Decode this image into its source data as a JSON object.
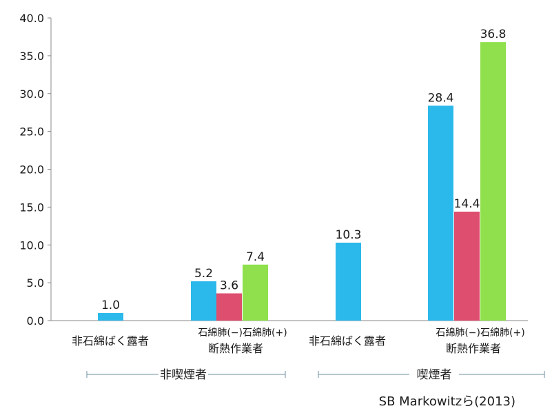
{
  "chart_data": {
    "type": "bar",
    "ylim": [
      0,
      40
    ],
    "y_ticks": [
      "0.0",
      "5.0",
      "10.0",
      "15.0",
      "20.0",
      "25.0",
      "30.0",
      "35.0",
      "40.0"
    ],
    "grid": false,
    "bars": [
      {
        "group": "非喫煙者",
        "category": "非石綿ばく露者",
        "value": 1.0,
        "label": "1.0",
        "color": "#2bb8ea"
      },
      {
        "group": "非喫煙者",
        "category": "断熱作業者",
        "sub": "石綿肺(−)",
        "value": 5.2,
        "label": "5.2",
        "color": "#2bb8ea"
      },
      {
        "group": "非喫煙者",
        "category": "断熱作業者",
        "sub": "石綿肺(−)",
        "value": 3.6,
        "label": "3.6",
        "color": "#de4e6e"
      },
      {
        "group": "非喫煙者",
        "category": "断熱作業者",
        "sub": "石綿肺(+)",
        "value": 7.4,
        "label": "7.4",
        "color": "#8fe04c"
      },
      {
        "group": "喫煙者",
        "category": "非石綿ばく露者",
        "value": 10.3,
        "label": "10.3",
        "color": "#2bb8ea"
      },
      {
        "group": "喫煙者",
        "category": "断熱作業者",
        "sub": "石綿肺(−)",
        "value": 28.4,
        "label": "28.4",
        "color": "#2bb8ea"
      },
      {
        "group": "喫煙者",
        "category": "断熱作業者",
        "sub": "石綿肺(−)",
        "value": 14.4,
        "label": "14.4",
        "color": "#de4e6e"
      },
      {
        "group": "喫煙者",
        "category": "断熱作業者",
        "sub": "石綿肺(+)",
        "value": 36.8,
        "label": "36.8",
        "color": "#8fe04c"
      }
    ],
    "categories": [
      {
        "label": "非石綿ばく露者"
      },
      {
        "label": "断熱作業者",
        "sub": "石綿肺(−)石綿肺(+)"
      },
      {
        "label": "非石綿ばく露者"
      },
      {
        "label": "断熱作業者",
        "sub": "石綿肺(−)石綿肺(+)"
      }
    ],
    "groups": [
      "非喫煙者",
      "喫煙者"
    ],
    "source": "SB Markowitzら(2013)"
  }
}
